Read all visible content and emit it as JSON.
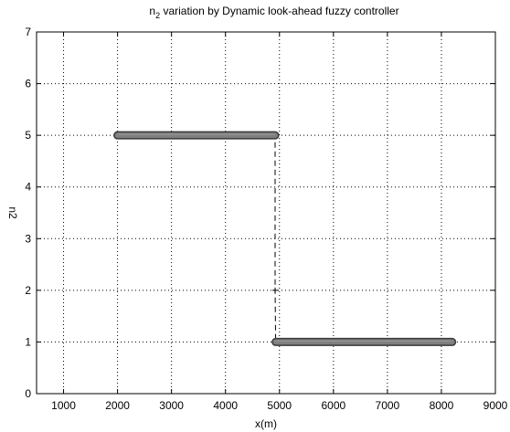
{
  "chart_data": {
    "type": "line",
    "title_main": "n",
    "title_sub": "2",
    "title_rest": " variation by Dynamic look-ahead fuzzy controller",
    "xlabel": "x(m)",
    "ylabel": "n2",
    "xlim": [
      500,
      9000
    ],
    "ylim": [
      0,
      7
    ],
    "xticks": [
      1000,
      2000,
      3000,
      4000,
      5000,
      6000,
      7000,
      8000,
      9000
    ],
    "yticks": [
      0,
      1,
      2,
      3,
      4,
      5,
      6,
      7
    ],
    "grid": true,
    "grid_style": "dotted",
    "line_color": "#000000",
    "marker_color": "#7f7f7f",
    "series": [
      {
        "points": [
          {
            "x": 2000,
            "y": 5
          },
          {
            "x": 4920,
            "y": 5
          },
          {
            "x": 4920,
            "y": 2
          },
          {
            "x": 4930,
            "y": 1
          },
          {
            "x": 8200,
            "y": 1
          }
        ],
        "dense_segments": [
          {
            "x_start": 2000,
            "x_end": 4920,
            "y": 5
          },
          {
            "x_start": 4930,
            "x_end": 8200,
            "y": 1
          }
        ],
        "transition_marker": {
          "x": 4920,
          "y": 2
        }
      }
    ]
  }
}
